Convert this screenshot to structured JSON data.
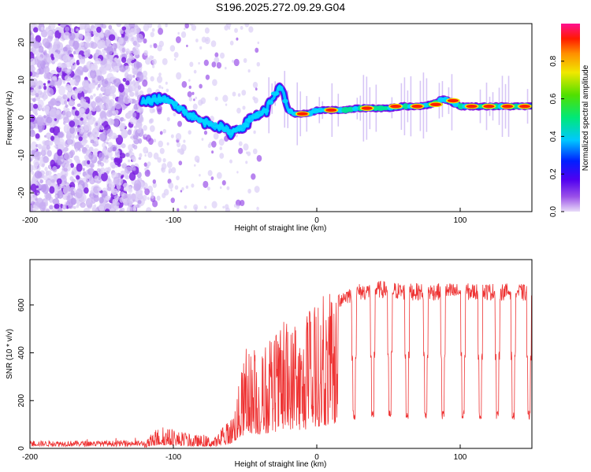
{
  "title": "S196.2025.272.09.29.G04",
  "chart_data": [
    {
      "type": "heatmap",
      "xlabel": "Height of straight line (km)",
      "ylabel": "Frequency (Hz)",
      "xlim": [
        -200,
        150
      ],
      "ylim": [
        -25,
        25
      ],
      "xticks": [
        -200,
        -100,
        0,
        100
      ],
      "yticks": [
        -20,
        -10,
        0,
        10,
        20
      ],
      "colorbar": {
        "label": "Normalized spectral amplitude",
        "range": [
          0,
          1
        ],
        "ticks": [
          "0.0",
          "0.2",
          "0.4",
          "0.6",
          "0.8"
        ],
        "tick_values": [
          0.0,
          0.2,
          0.4,
          0.6,
          0.8
        ],
        "colors": [
          "#d9c8f2",
          "#7a00e0",
          "#0000ff",
          "#00d8ff",
          "#00e060",
          "#8be000",
          "#f0e000",
          "#ff8000",
          "#ff0000",
          "#ff1090"
        ]
      },
      "ridge": {
        "x": [
          -122,
          -110,
          -100,
          -90,
          -80,
          -70,
          -60,
          -50,
          -45,
          -40,
          -35,
          -30,
          -25,
          -20,
          -15,
          -10,
          -5,
          0,
          10,
          20,
          30,
          40,
          50,
          60,
          70,
          80,
          88,
          92,
          100,
          110,
          120,
          130,
          140,
          150
        ],
        "y": [
          4,
          5,
          4,
          1,
          -1,
          -2,
          -4,
          -2,
          0,
          1,
          2,
          6,
          8,
          2,
          1,
          1,
          1,
          2,
          2,
          2,
          2.5,
          2.5,
          2.5,
          3,
          3,
          3.5,
          5,
          4.5,
          3,
          3,
          3,
          3,
          3,
          3
        ]
      },
      "noise_region_x": [
        -200,
        -122
      ]
    },
    {
      "type": "line",
      "xlabel": "Height of straight line (km)",
      "ylabel": "SNR (10 * v/v)",
      "xlim": [
        -200,
        150
      ],
      "ylim": [
        0,
        790
      ],
      "xticks": [
        -200,
        -100,
        0,
        100
      ],
      "yticks": [
        0,
        200,
        400,
        600
      ],
      "series": [
        {
          "name": "SNR",
          "color": "#ee3333",
          "envelope_x": [
            -200,
            -120,
            -115,
            -110,
            -100,
            -90,
            -80,
            -70,
            -60,
            -55,
            -50,
            -45,
            -40,
            -35,
            -30,
            -25,
            -20,
            -15,
            -10,
            -5,
            0,
            5,
            10,
            15,
            20,
            25,
            30,
            35,
            40,
            45,
            50,
            60,
            70,
            80,
            90,
            100,
            110,
            120,
            130,
            140,
            150
          ],
          "envelope_y": [
            25,
            25,
            60,
            90,
            80,
            60,
            55,
            50,
            130,
            250,
            400,
            420,
            380,
            420,
            450,
            500,
            520,
            540,
            500,
            560,
            600,
            620,
            660,
            680,
            700,
            710,
            720,
            720,
            730,
            730,
            730,
            720,
            720,
            720,
            720,
            720,
            720,
            720,
            720,
            720,
            710
          ],
          "dip_x": [
            26,
            39,
            51,
            63,
            76,
            88,
            102,
            114,
            126,
            137,
            148
          ],
          "dip_y": [
            120
          ]
        }
      ]
    }
  ]
}
